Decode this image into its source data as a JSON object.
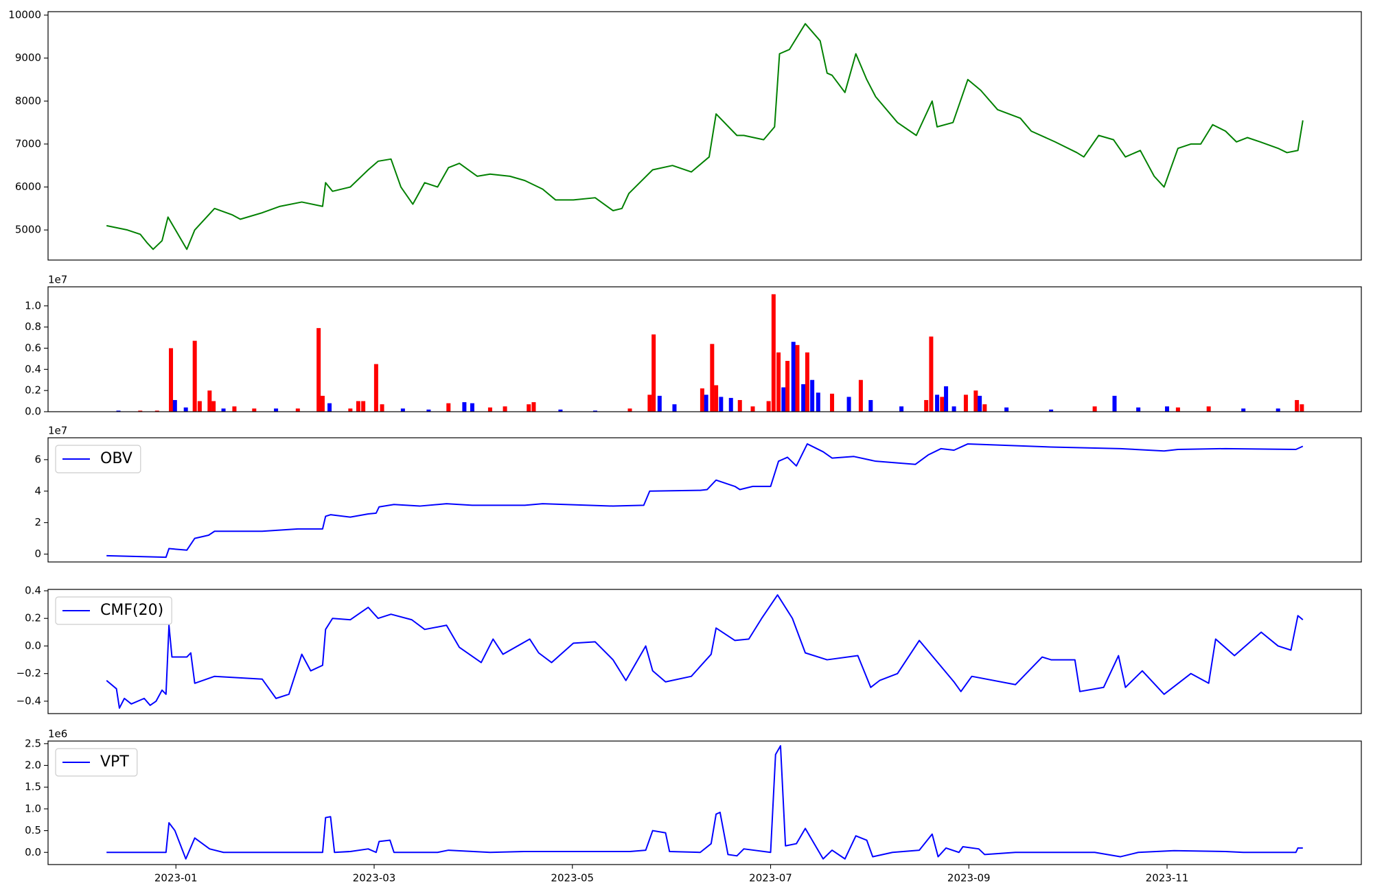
{
  "chart_data": [
    {
      "type": "line",
      "color": "#008000",
      "x": [
        -0.7,
        -0.49,
        -0.36,
        -0.29,
        -0.23,
        -0.14,
        -0.08,
        0.11,
        0.19,
        0.39,
        0.57,
        0.65,
        0.87,
        1.05,
        1.27,
        1.48,
        1.51,
        1.58,
        1.76,
        1.94,
        2.04,
        2.17,
        2.27,
        2.39,
        2.51,
        2.64,
        2.75,
        2.86,
        3.04,
        3.17,
        3.37,
        3.52,
        3.7,
        3.83,
        4.01,
        4.23,
        4.41,
        4.5,
        4.57,
        4.81,
        5.01,
        5.2,
        5.38,
        5.45,
        5.66,
        5.73,
        5.93,
        6.04,
        6.09,
        6.19,
        6.35,
        6.5,
        6.57,
        6.62,
        6.75,
        6.86,
        6.97,
        7.06,
        7.28,
        7.47,
        7.63,
        7.68,
        7.84,
        7.99,
        8.12,
        8.29,
        8.52,
        8.63,
        8.87,
        9.09,
        9.16,
        9.31,
        9.46,
        9.58,
        9.73,
        9.87,
        9.97,
        10.11,
        10.24,
        10.34,
        10.46,
        10.59,
        10.7,
        10.81,
        10.94,
        11.12,
        11.21,
        11.32,
        11.37
      ],
      "values": [
        5100,
        5000,
        4900,
        4700,
        4550,
        4750,
        5300,
        4550,
        5000,
        5500,
        5350,
        5250,
        5400,
        5550,
        5650,
        5550,
        6100,
        5900,
        6000,
        6400,
        6600,
        6650,
        6000,
        5600,
        6100,
        6000,
        6450,
        6550,
        6250,
        6300,
        6250,
        6150,
        5950,
        5700,
        5700,
        5750,
        5450,
        5500,
        5850,
        6400,
        6500,
        6350,
        6700,
        7700,
        7200,
        7200,
        7100,
        7400,
        9100,
        9200,
        9800,
        9400,
        8650,
        8600,
        8200,
        9100,
        8500,
        8100,
        7500,
        7200,
        8000,
        7400,
        7500,
        8500,
        8250,
        7800,
        7600,
        7300,
        7050,
        6800,
        6700,
        7200,
        7100,
        6700,
        6850,
        6250,
        6000,
        6900,
        7000,
        7000,
        7450,
        7300,
        7050,
        7150,
        7050,
        6900,
        6800,
        6850,
        7550
      ],
      "xlim": [
        -1.29,
        11.96
      ],
      "ylim": [
        4300,
        10080
      ],
      "yticks": [
        5000,
        6000,
        7000,
        8000,
        9000,
        10000
      ]
    },
    {
      "type": "bar",
      "offset_label": "1e7",
      "x": [
        -0.58,
        -0.36,
        -0.19,
        -0.05,
        -0.01,
        0.1,
        0.19,
        0.24,
        0.34,
        0.38,
        0.48,
        0.59,
        0.79,
        1.01,
        1.23,
        1.44,
        1.48,
        1.55,
        1.76,
        1.84,
        1.89,
        2.02,
        2.08,
        2.29,
        2.55,
        2.75,
        2.91,
        2.99,
        3.17,
        3.32,
        3.56,
        3.61,
        3.88,
        4.23,
        4.58,
        4.78,
        4.82,
        4.88,
        5.03,
        5.31,
        5.35,
        5.41,
        5.45,
        5.5,
        5.6,
        5.69,
        5.82,
        5.98,
        6.03,
        6.08,
        6.13,
        6.17,
        6.23,
        6.27,
        6.33,
        6.37,
        6.42,
        6.48,
        6.62,
        6.79,
        6.91,
        7.01,
        7.32,
        7.57,
        7.62,
        7.68,
        7.73,
        7.77,
        7.85,
        7.97,
        8.07,
        8.11,
        8.16,
        8.38,
        8.83,
        9.27,
        9.47,
        9.71,
        10.0,
        10.11,
        10.42,
        10.77,
        11.12,
        11.31,
        11.36
      ],
      "values": [
        0.01,
        0.01,
        0.01,
        0.6,
        0.11,
        0.04,
        0.67,
        0.1,
        0.2,
        0.1,
        0.03,
        0.05,
        0.03,
        0.03,
        0.03,
        0.79,
        0.15,
        0.08,
        0.03,
        0.1,
        0.1,
        0.45,
        0.07,
        0.03,
        0.02,
        0.08,
        0.09,
        0.08,
        0.04,
        0.05,
        0.07,
        0.09,
        0.02,
        0.01,
        0.03,
        0.16,
        0.73,
        0.15,
        0.07,
        0.22,
        0.16,
        0.64,
        0.25,
        0.14,
        0.13,
        0.11,
        0.05,
        0.1,
        1.11,
        0.56,
        0.23,
        0.48,
        0.66,
        0.63,
        0.26,
        0.56,
        0.3,
        0.18,
        0.17,
        0.14,
        0.3,
        0.11,
        0.05,
        0.11,
        0.71,
        0.16,
        0.14,
        0.24,
        0.05,
        0.16,
        0.2,
        0.15,
        0.07,
        0.04,
        0.02,
        0.05,
        0.15,
        0.04,
        0.05,
        0.04,
        0.05,
        0.03,
        0.03,
        0.11,
        0.07
      ],
      "colors": [
        "#0000ff",
        "#ff0000",
        "#ff0000",
        "#ff0000",
        "#0000ff",
        "#0000ff",
        "#ff0000",
        "#ff0000",
        "#ff0000",
        "#ff0000",
        "#0000ff",
        "#ff0000",
        "#ff0000",
        "#0000ff",
        "#ff0000",
        "#ff0000",
        "#ff0000",
        "#0000ff",
        "#ff0000",
        "#ff0000",
        "#ff0000",
        "#ff0000",
        "#ff0000",
        "#0000ff",
        "#0000ff",
        "#ff0000",
        "#0000ff",
        "#0000ff",
        "#ff0000",
        "#ff0000",
        "#ff0000",
        "#ff0000",
        "#0000ff",
        "#0000ff",
        "#ff0000",
        "#ff0000",
        "#ff0000",
        "#0000ff",
        "#0000ff",
        "#ff0000",
        "#0000ff",
        "#ff0000",
        "#ff0000",
        "#0000ff",
        "#0000ff",
        "#ff0000",
        "#ff0000",
        "#ff0000",
        "#ff0000",
        "#ff0000",
        "#0000ff",
        "#ff0000",
        "#0000ff",
        "#ff0000",
        "#0000ff",
        "#ff0000",
        "#0000ff",
        "#0000ff",
        "#ff0000",
        "#0000ff",
        "#ff0000",
        "#0000ff",
        "#0000ff",
        "#ff0000",
        "#ff0000",
        "#0000ff",
        "#ff0000",
        "#0000ff",
        "#0000ff",
        "#ff0000",
        "#ff0000",
        "#0000ff",
        "#ff0000",
        "#0000ff",
        "#0000ff",
        "#ff0000",
        "#0000ff",
        "#0000ff",
        "#0000ff",
        "#ff0000",
        "#ff0000",
        "#0000ff",
        "#0000ff",
        "#ff0000",
        "#ff0000"
      ],
      "xlim": [
        -1.29,
        11.96
      ],
      "ylim": [
        0,
        1.18
      ],
      "yticks": [
        {
          "value": 0,
          "label": "0.0"
        },
        0.2,
        0.4,
        0.6,
        0.8,
        {
          "value": 1,
          "label": "1.0"
        }
      ]
    },
    {
      "type": "line",
      "offset_label": "1e7",
      "legend": "upper left",
      "x": [
        -0.7,
        -0.1,
        -0.07,
        0.11,
        0.19,
        0.33,
        0.39,
        0.87,
        1.23,
        1.48,
        1.51,
        1.56,
        1.76,
        1.94,
        2.02,
        2.05,
        2.2,
        2.46,
        2.73,
        2.99,
        3.52,
        3.7,
        4.41,
        4.72,
        4.78,
        5.29,
        5.36,
        5.45,
        5.64,
        5.69,
        5.82,
        6.0,
        6.08,
        6.17,
        6.26,
        6.37,
        6.53,
        6.62,
        6.84,
        7.06,
        7.46,
        7.59,
        7.72,
        7.85,
        7.99,
        8.83,
        9.53,
        9.97,
        10.11,
        10.59,
        11.3,
        11.37
      ],
      "series": [
        {
          "name": "OBV",
          "color": "#0000ff",
          "values": [
            -0.1,
            -0.2,
            0.35,
            0.25,
            1.0,
            1.2,
            1.45,
            1.45,
            1.6,
            1.6,
            2.4,
            2.5,
            2.35,
            2.55,
            2.6,
            3.0,
            3.15,
            3.05,
            3.2,
            3.1,
            3.1,
            3.2,
            3.05,
            3.1,
            4.0,
            4.05,
            4.1,
            4.7,
            4.3,
            4.1,
            4.3,
            4.3,
            5.9,
            6.15,
            5.6,
            7.0,
            6.5,
            6.1,
            6.2,
            5.9,
            5.7,
            6.3,
            6.7,
            6.6,
            7.0,
            6.8,
            6.7,
            6.55,
            6.65,
            6.7,
            6.65,
            6.85
          ]
        }
      ],
      "xlim": [
        -1.29,
        11.96
      ],
      "ylim": [
        -0.5,
        7.39
      ],
      "yticks": [
        0,
        2,
        4,
        6
      ]
    },
    {
      "type": "line",
      "legend": "upper left",
      "x": [
        -0.7,
        -0.6,
        -0.57,
        -0.52,
        -0.45,
        -0.32,
        -0.26,
        -0.2,
        -0.14,
        -0.1,
        -0.07,
        -0.04,
        0.11,
        0.15,
        0.19,
        0.39,
        0.87,
        1.01,
        1.14,
        1.27,
        1.36,
        1.48,
        1.51,
        1.58,
        1.76,
        1.94,
        2.04,
        2.17,
        2.38,
        2.51,
        2.73,
        2.86,
        3.08,
        3.2,
        3.3,
        3.57,
        3.66,
        3.79,
        4.01,
        4.23,
        4.41,
        4.54,
        4.74,
        4.81,
        4.94,
        5.2,
        5.4,
        5.45,
        5.64,
        5.78,
        5.91,
        6.07,
        6.22,
        6.35,
        6.57,
        6.88,
        7.01,
        7.1,
        7.28,
        7.5,
        7.85,
        7.92,
        8.03,
        8.47,
        8.74,
        8.83,
        9.07,
        9.12,
        9.36,
        9.51,
        9.58,
        9.75,
        9.97,
        10.24,
        10.42,
        10.49,
        10.68,
        10.95,
        11.12,
        11.25,
        11.32,
        11.37
      ],
      "series": [
        {
          "name": "CMF(20)",
          "color": "#0000ff",
          "values": [
            -0.25,
            -0.31,
            -0.45,
            -0.38,
            -0.42,
            -0.38,
            -0.43,
            -0.4,
            -0.32,
            -0.35,
            0.15,
            -0.08,
            -0.08,
            -0.05,
            -0.27,
            -0.22,
            -0.24,
            -0.38,
            -0.35,
            -0.06,
            -0.18,
            -0.14,
            0.12,
            0.2,
            0.19,
            0.28,
            0.2,
            0.23,
            0.19,
            0.12,
            0.15,
            -0.01,
            -0.12,
            0.05,
            -0.06,
            0.05,
            -0.05,
            -0.12,
            0.02,
            0.03,
            -0.1,
            -0.25,
            0.0,
            -0.18,
            -0.26,
            -0.22,
            -0.06,
            0.13,
            0.04,
            0.05,
            0.2,
            0.37,
            0.2,
            -0.05,
            -0.1,
            -0.07,
            -0.3,
            -0.25,
            -0.2,
            0.04,
            -0.26,
            -0.33,
            -0.22,
            -0.28,
            -0.08,
            -0.1,
            -0.1,
            -0.33,
            -0.3,
            -0.07,
            -0.3,
            -0.18,
            -0.35,
            -0.2,
            -0.27,
            0.05,
            -0.07,
            0.1,
            0.0,
            -0.03,
            0.22,
            0.19
          ]
        }
      ],
      "xlim": [
        -1.29,
        11.96
      ],
      "ylim": [
        -0.49,
        0.41
      ],
      "yticks": [
        {
          "value": -0.4,
          "label": "−0.4"
        },
        {
          "value": -0.2,
          "label": "−0.2"
        },
        {
          "value": 0,
          "label": "0.0"
        },
        0.2,
        0.4
      ]
    },
    {
      "type": "line",
      "offset_label": "1e6",
      "legend": "upper left",
      "x": [
        -0.7,
        -0.1,
        -0.07,
        -0.01,
        0.1,
        0.19,
        0.34,
        0.48,
        0.87,
        1.48,
        1.51,
        1.56,
        1.6,
        1.76,
        1.94,
        2.02,
        2.05,
        2.16,
        2.2,
        2.64,
        2.75,
        3.17,
        3.52,
        4.58,
        4.74,
        4.81,
        4.94,
        4.98,
        5.29,
        5.4,
        5.45,
        5.49,
        5.57,
        5.66,
        5.73,
        6.0,
        6.05,
        6.1,
        6.15,
        6.26,
        6.35,
        6.53,
        6.62,
        6.75,
        6.86,
        6.97,
        7.03,
        7.23,
        7.5,
        7.63,
        7.69,
        7.77,
        7.9,
        7.94,
        8.1,
        8.16,
        8.47,
        9.27,
        9.53,
        9.71,
        10.07,
        10.59,
        10.77,
        11.3,
        11.32,
        11.37
      ],
      "series": [
        {
          "name": "VPT",
          "color": "#0000ff",
          "values": [
            0.0,
            0.0,
            0.68,
            0.5,
            -0.15,
            0.33,
            0.08,
            0.0,
            0.0,
            0.0,
            0.8,
            0.82,
            0.0,
            0.02,
            0.08,
            0.0,
            0.25,
            0.28,
            0.0,
            0.0,
            0.05,
            0.0,
            0.02,
            0.02,
            0.05,
            0.5,
            0.45,
            0.02,
            0.0,
            0.2,
            0.88,
            0.92,
            -0.05,
            -0.08,
            0.08,
            0.0,
            2.25,
            2.45,
            0.15,
            0.2,
            0.55,
            -0.15,
            0.05,
            -0.15,
            0.38,
            0.28,
            -0.1,
            0.0,
            0.05,
            0.42,
            -0.1,
            0.1,
            0.0,
            0.13,
            0.08,
            -0.05,
            0.0,
            0.0,
            -0.1,
            0.0,
            0.04,
            0.02,
            0.0,
            0.0,
            0.1,
            0.1
          ]
        }
      ],
      "xlim": [
        -1.29,
        11.96
      ],
      "ylim": [
        -0.28,
        2.56
      ],
      "yticks": [
        {
          "value": 0,
          "label": "0.0"
        },
        0.5,
        {
          "value": 1,
          "label": "1.0"
        },
        1.5,
        {
          "value": 2,
          "label": "2.0"
        },
        2.5
      ],
      "xticks": [
        {
          "value": 0,
          "label": "2023-01"
        },
        {
          "value": 2,
          "label": "2023-03"
        },
        {
          "value": 4,
          "label": "2023-05"
        },
        {
          "value": 6,
          "label": "2023-07"
        },
        {
          "value": 8,
          "label": "2023-09"
        },
        {
          "value": 10,
          "label": "2023-11"
        }
      ]
    }
  ]
}
